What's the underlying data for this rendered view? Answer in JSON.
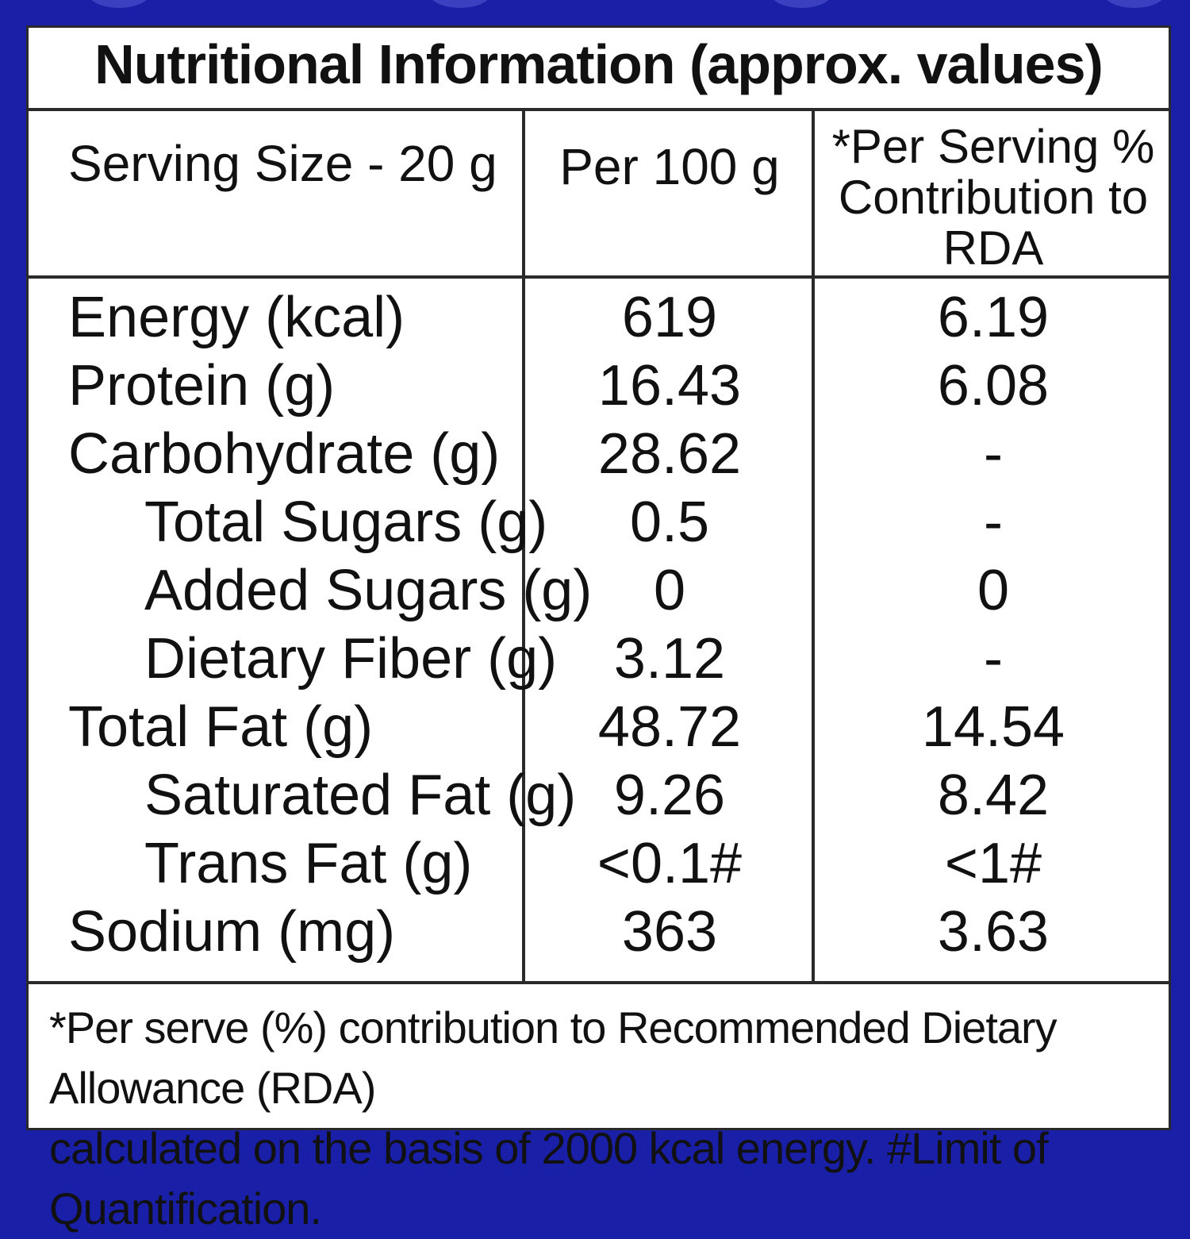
{
  "title": "Nutritional Information (approx. values)",
  "headers": {
    "serving_size": "Serving Size - 20 g",
    "per_100g": "Per 100 g",
    "per_serving_rda": "*Per Serving % Contribution to RDA"
  },
  "rows": [
    {
      "name": "Energy (kcal)",
      "per100": "619",
      "rda": "6.19",
      "indent": false
    },
    {
      "name": "Protein (g)",
      "per100": "16.43",
      "rda": "6.08",
      "indent": false
    },
    {
      "name": "Carbohydrate (g)",
      "per100": "28.62",
      "rda": "-",
      "indent": false
    },
    {
      "name": "Total Sugars (g)",
      "per100": "0.5",
      "rda": "-",
      "indent": true
    },
    {
      "name": "Added Sugars (g)",
      "per100": "0",
      "rda": "0",
      "indent": true
    },
    {
      "name": "Dietary Fiber (g)",
      "per100": "3.12",
      "rda": "-",
      "indent": true
    },
    {
      "name": "Total Fat (g)",
      "per100": "48.72",
      "rda": "14.54",
      "indent": false
    },
    {
      "name": "Saturated Fat (g)",
      "per100": "9.26",
      "rda": "8.42",
      "indent": true
    },
    {
      "name": "Trans Fat (g)",
      "per100": "<0.1#",
      "rda": "<1#",
      "indent": true
    },
    {
      "name": "Sodium (mg)",
      "per100": "363",
      "rda": "3.63",
      "indent": false
    }
  ],
  "footnote_line1": "*Per serve (%) contribution to Recommended Dietary Allowance (RDA)",
  "footnote_line2": "calculated on the basis of 2000 kcal energy. #Limit of Quantification."
}
